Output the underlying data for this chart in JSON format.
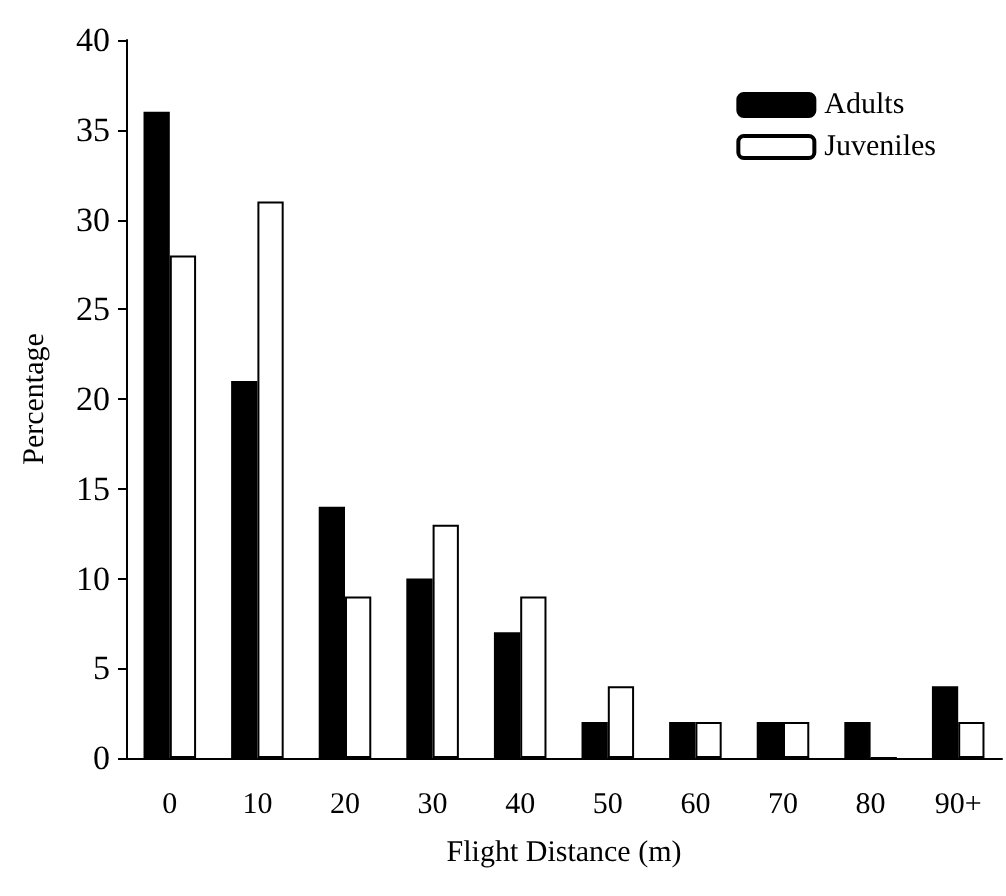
{
  "chart_data": {
    "type": "bar",
    "xlabel": "Flight Distance (m)",
    "ylabel": "Percentage",
    "categories": [
      "0",
      "10",
      "20",
      "30",
      "40",
      "50",
      "60",
      "70",
      "80",
      "90+"
    ],
    "series": [
      {
        "name": "Adults",
        "color": "#000000",
        "values": [
          36,
          21,
          14,
          10,
          7,
          2,
          2,
          2,
          2,
          4
        ]
      },
      {
        "name": "Juveniles",
        "color": "#ffffff",
        "values": [
          28,
          31,
          9,
          13,
          9,
          4,
          2,
          2,
          0,
          2
        ]
      }
    ],
    "ylim": [
      0,
      40
    ],
    "yticks": [
      0,
      5,
      10,
      15,
      20,
      25,
      30,
      35,
      40
    ],
    "grid": false,
    "legend": "top right"
  }
}
